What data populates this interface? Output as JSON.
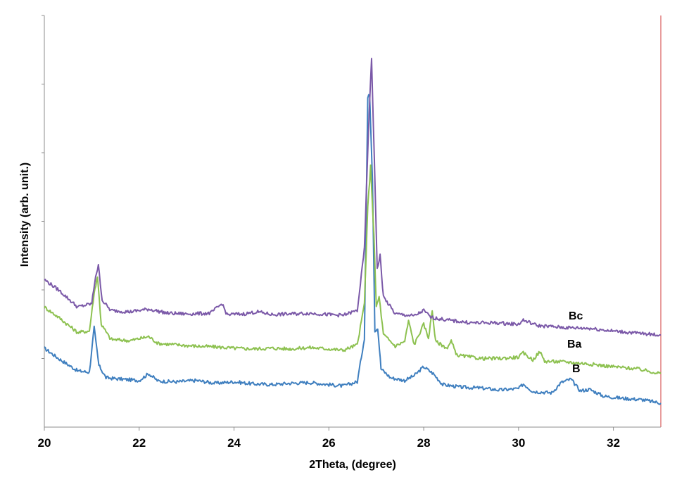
{
  "chart_data": {
    "type": "line",
    "title": "",
    "xlabel": "2Theta, (degree)",
    "ylabel": "Intensity (arb. unit.)",
    "xlim": [
      20,
      33
    ],
    "ylim": [
      0,
      6
    ],
    "x_ticks": [
      "20",
      "22",
      "24",
      "26",
      "28",
      "30",
      "32"
    ],
    "y_ticks_labeled": false,
    "grid": false,
    "legend": "none",
    "series": [
      {
        "name": "B",
        "color": "#3f7fbf",
        "points": [
          [
            20.0,
            1.15
          ],
          [
            20.3,
            1.0
          ],
          [
            20.7,
            0.82
          ],
          [
            20.95,
            0.8
          ],
          [
            21.05,
            1.45
          ],
          [
            21.15,
            0.9
          ],
          [
            21.3,
            0.72
          ],
          [
            21.6,
            0.7
          ],
          [
            22.0,
            0.68
          ],
          [
            22.2,
            0.78
          ],
          [
            22.4,
            0.67
          ],
          [
            22.8,
            0.66
          ],
          [
            23.2,
            0.68
          ],
          [
            23.6,
            0.64
          ],
          [
            24.0,
            0.66
          ],
          [
            24.4,
            0.63
          ],
          [
            24.8,
            0.62
          ],
          [
            25.2,
            0.64
          ],
          [
            25.6,
            0.65
          ],
          [
            26.0,
            0.62
          ],
          [
            26.3,
            0.6
          ],
          [
            26.6,
            0.66
          ],
          [
            26.75,
            1.3
          ],
          [
            26.82,
            4.8
          ],
          [
            26.86,
            4.85
          ],
          [
            26.92,
            3.6
          ],
          [
            26.97,
            1.4
          ],
          [
            27.03,
            1.45
          ],
          [
            27.1,
            0.85
          ],
          [
            27.3,
            0.72
          ],
          [
            27.6,
            0.68
          ],
          [
            27.8,
            0.75
          ],
          [
            28.0,
            0.88
          ],
          [
            28.2,
            0.78
          ],
          [
            28.4,
            0.62
          ],
          [
            28.8,
            0.58
          ],
          [
            29.2,
            0.57
          ],
          [
            29.6,
            0.54
          ],
          [
            30.0,
            0.56
          ],
          [
            30.1,
            0.63
          ],
          [
            30.3,
            0.52
          ],
          [
            30.7,
            0.5
          ],
          [
            30.9,
            0.65
          ],
          [
            31.1,
            0.7
          ],
          [
            31.3,
            0.53
          ],
          [
            31.5,
            0.55
          ],
          [
            31.8,
            0.45
          ],
          [
            32.2,
            0.42
          ],
          [
            32.6,
            0.4
          ],
          [
            33.0,
            0.35
          ]
        ]
      },
      {
        "name": "Ba",
        "color": "#8dc150",
        "points": [
          [
            20.0,
            1.75
          ],
          [
            20.3,
            1.6
          ],
          [
            20.7,
            1.38
          ],
          [
            20.95,
            1.4
          ],
          [
            21.05,
            1.95
          ],
          [
            21.12,
            2.2
          ],
          [
            21.2,
            1.5
          ],
          [
            21.4,
            1.28
          ],
          [
            21.8,
            1.26
          ],
          [
            22.2,
            1.32
          ],
          [
            22.4,
            1.22
          ],
          [
            22.8,
            1.2
          ],
          [
            23.2,
            1.18
          ],
          [
            23.6,
            1.17
          ],
          [
            24.0,
            1.15
          ],
          [
            24.4,
            1.14
          ],
          [
            24.8,
            1.15
          ],
          [
            25.2,
            1.14
          ],
          [
            25.6,
            1.16
          ],
          [
            26.0,
            1.14
          ],
          [
            26.3,
            1.12
          ],
          [
            26.6,
            1.2
          ],
          [
            26.75,
            1.8
          ],
          [
            26.82,
            3.2
          ],
          [
            26.88,
            3.8
          ],
          [
            26.95,
            2.8
          ],
          [
            27.0,
            1.75
          ],
          [
            27.06,
            1.9
          ],
          [
            27.15,
            1.35
          ],
          [
            27.4,
            1.18
          ],
          [
            27.6,
            1.25
          ],
          [
            27.68,
            1.55
          ],
          [
            27.8,
            1.2
          ],
          [
            28.0,
            1.5
          ],
          [
            28.1,
            1.3
          ],
          [
            28.18,
            1.7
          ],
          [
            28.25,
            1.25
          ],
          [
            28.5,
            1.15
          ],
          [
            28.58,
            1.25
          ],
          [
            28.7,
            1.05
          ],
          [
            29.2,
            1.0
          ],
          [
            29.6,
            1.0
          ],
          [
            30.0,
            1.02
          ],
          [
            30.1,
            1.08
          ],
          [
            30.3,
            0.98
          ],
          [
            30.45,
            1.1
          ],
          [
            30.55,
            0.96
          ],
          [
            31.0,
            0.95
          ],
          [
            31.5,
            0.92
          ],
          [
            32.0,
            0.88
          ],
          [
            32.5,
            0.85
          ],
          [
            33.0,
            0.78
          ]
        ]
      },
      {
        "name": "Bc",
        "color": "#7b59a8",
        "points": [
          [
            20.0,
            2.15
          ],
          [
            20.3,
            2.0
          ],
          [
            20.7,
            1.75
          ],
          [
            21.0,
            1.8
          ],
          [
            21.08,
            2.2
          ],
          [
            21.14,
            2.35
          ],
          [
            21.22,
            1.85
          ],
          [
            21.4,
            1.7
          ],
          [
            21.8,
            1.68
          ],
          [
            22.2,
            1.72
          ],
          [
            22.6,
            1.66
          ],
          [
            23.0,
            1.65
          ],
          [
            23.5,
            1.66
          ],
          [
            23.75,
            1.8
          ],
          [
            23.85,
            1.64
          ],
          [
            24.2,
            1.65
          ],
          [
            24.5,
            1.68
          ],
          [
            24.8,
            1.64
          ],
          [
            25.2,
            1.65
          ],
          [
            25.6,
            1.66
          ],
          [
            26.0,
            1.64
          ],
          [
            26.3,
            1.63
          ],
          [
            26.6,
            1.7
          ],
          [
            26.75,
            2.6
          ],
          [
            26.85,
            4.6
          ],
          [
            26.9,
            5.35
          ],
          [
            26.96,
            3.9
          ],
          [
            27.02,
            2.3
          ],
          [
            27.08,
            2.5
          ],
          [
            27.15,
            1.9
          ],
          [
            27.4,
            1.65
          ],
          [
            27.8,
            1.62
          ],
          [
            28.0,
            1.7
          ],
          [
            28.15,
            1.6
          ],
          [
            28.5,
            1.56
          ],
          [
            29.0,
            1.52
          ],
          [
            29.5,
            1.52
          ],
          [
            30.0,
            1.5
          ],
          [
            30.1,
            1.56
          ],
          [
            30.4,
            1.48
          ],
          [
            31.0,
            1.45
          ],
          [
            31.5,
            1.44
          ],
          [
            32.0,
            1.4
          ],
          [
            32.5,
            1.37
          ],
          [
            33.0,
            1.34
          ]
        ]
      }
    ]
  },
  "labels": {
    "bc": "Bc",
    "ba": "Ba",
    "b": "B"
  }
}
